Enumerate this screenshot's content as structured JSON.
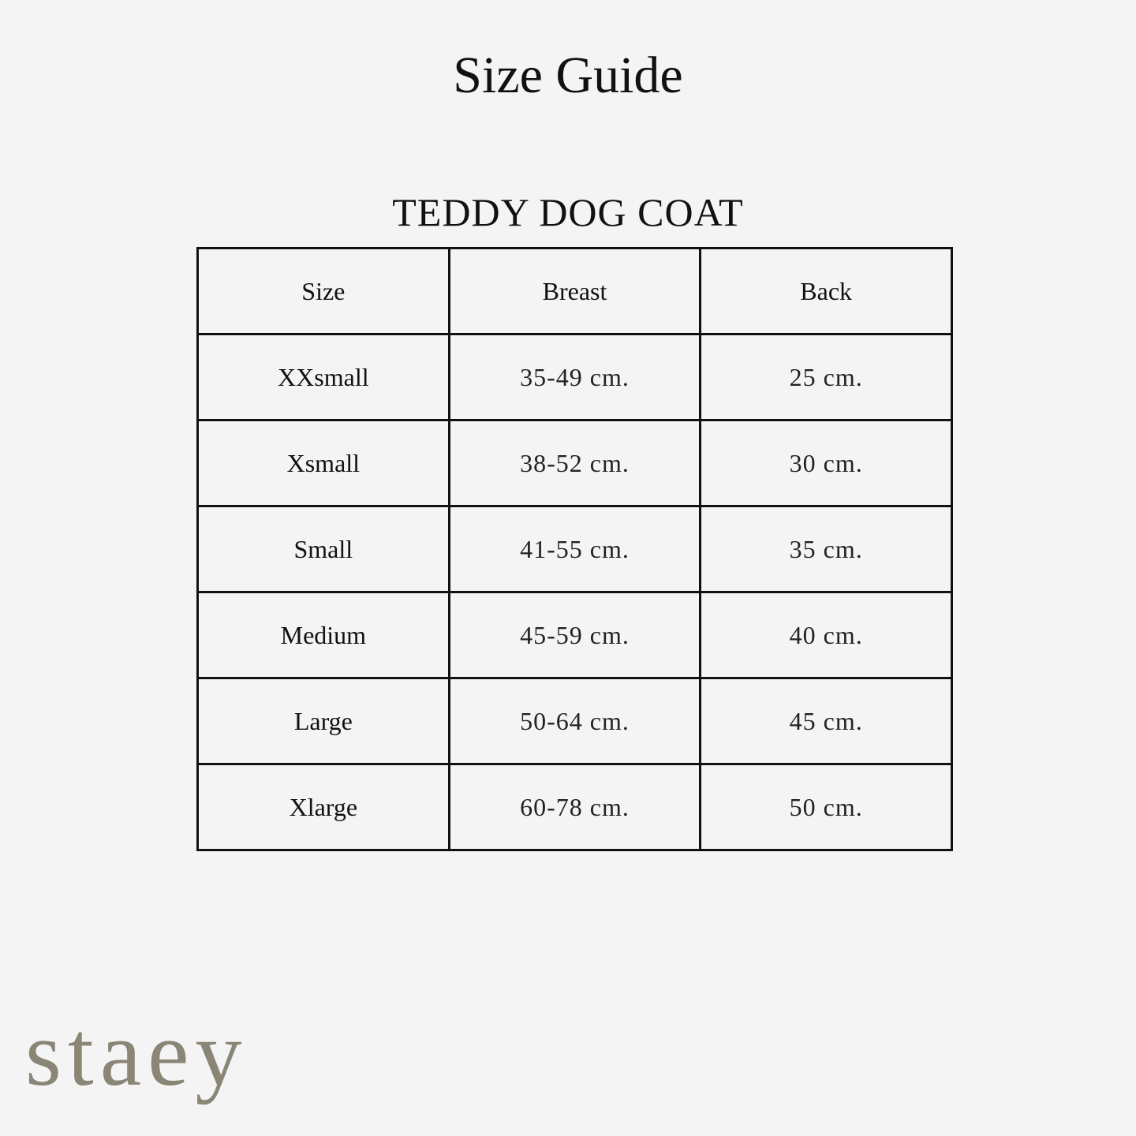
{
  "title": "Size Guide",
  "subtitle": "TEDDY DOG COAT",
  "table": {
    "headers": [
      "Size",
      "Breast",
      "Back"
    ],
    "rows": [
      [
        "XXsmall",
        "35-49 cm.",
        "25 cm."
      ],
      [
        "Xsmall",
        "38-52 cm.",
        "30 cm."
      ],
      [
        "Small",
        "41-55 cm.",
        "35 cm."
      ],
      [
        "Medium",
        "45-59 cm.",
        "40 cm."
      ],
      [
        "Large",
        "50-64 cm.",
        "45 cm."
      ],
      [
        "Xlarge",
        "60-78 cm.",
        "50 cm."
      ]
    ]
  },
  "logo": "staey",
  "colors": {
    "background": "#f4f4f4",
    "logo": "#8a8676",
    "text": "#111111"
  }
}
